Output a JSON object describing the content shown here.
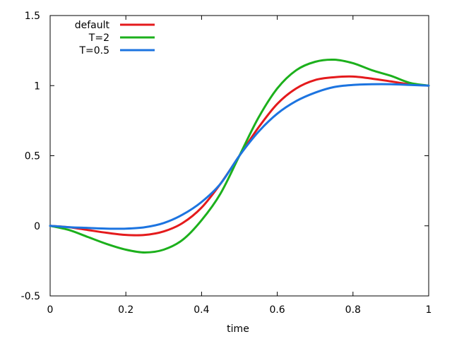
{
  "chart_data": {
    "type": "line",
    "title": "",
    "xlabel": "time",
    "ylabel": "",
    "xlim": [
      0,
      1
    ],
    "ylim": [
      -0.5,
      1.5
    ],
    "xticks": [
      0,
      0.2,
      0.4,
      0.6,
      0.8,
      1
    ],
    "xtick_labels": [
      "0",
      "0.2",
      "0.4",
      "0.6",
      "0.8",
      "1"
    ],
    "yticks": [
      -0.5,
      0,
      0.5,
      1,
      1.5
    ],
    "ytick_labels": [
      "-0.5",
      "0",
      "0.5",
      "1",
      "1.5"
    ],
    "grid": false,
    "legend_position": "top-left",
    "x": [
      0,
      0.05,
      0.1,
      0.15,
      0.2,
      0.25,
      0.3,
      0.35,
      0.4,
      0.45,
      0.5,
      0.55,
      0.6,
      0.65,
      0.7,
      0.75,
      0.8,
      0.85,
      0.9,
      0.95,
      1
    ],
    "series": [
      {
        "name": "default",
        "color": "#e41a1c",
        "values": [
          0,
          -0.01,
          -0.03,
          -0.05,
          -0.065,
          -0.065,
          -0.04,
          0.02,
          0.13,
          0.3,
          0.5,
          0.7,
          0.87,
          0.98,
          1.04,
          1.06,
          1.065,
          1.05,
          1.03,
          1.01,
          1
        ]
      },
      {
        "name": "T=2",
        "color": "#1cb01c",
        "values": [
          0,
          -0.03,
          -0.08,
          -0.13,
          -0.17,
          -0.19,
          -0.17,
          -0.1,
          0.04,
          0.23,
          0.5,
          0.77,
          0.98,
          1.11,
          1.17,
          1.185,
          1.16,
          1.11,
          1.07,
          1.02,
          1
        ]
      },
      {
        "name": "T=0.5",
        "color": "#1c74e0",
        "values": [
          0,
          -0.01,
          -0.015,
          -0.02,
          -0.02,
          -0.01,
          0.02,
          0.08,
          0.17,
          0.3,
          0.5,
          0.67,
          0.8,
          0.89,
          0.95,
          0.99,
          1.005,
          1.01,
          1.01,
          1.005,
          1
        ]
      }
    ]
  }
}
